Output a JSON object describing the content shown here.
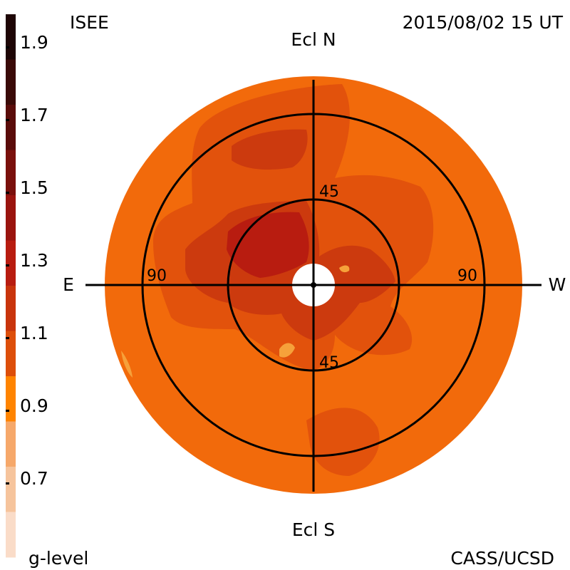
{
  "header": {
    "source_label": "ISEE",
    "timestamp": "2015/08/02 15 UT"
  },
  "footer": {
    "scale_title": "g-level",
    "credit": "CASS/UCSD"
  },
  "axes": {
    "north": "Ecl N",
    "south": "Ecl S",
    "east": "E",
    "west": "W",
    "ring_inner_top": "45",
    "ring_inner_bottom": "45",
    "ring_outer_left": "90",
    "ring_outer_right": "90"
  },
  "colorbar": {
    "tick_labels": [
      "1.9",
      "1.7",
      "1.5",
      "1.3",
      "1.1",
      "0.9",
      "0.7"
    ],
    "bands_top_to_bottom": [
      "#1e0606",
      "#3a0a08",
      "#5a0c0a",
      "#7a100c",
      "#9a140e",
      "#b81c10",
      "#c8340c",
      "#dd4e0a",
      "#ff8400",
      "#f6a86a",
      "#f6c49c",
      "#fadcc8"
    ]
  },
  "colors": {
    "background_disk": "#f26a0b",
    "level_1_0": "#e2520c",
    "level_1_1": "#cc3a0e",
    "level_1_2": "#b81c10",
    "level_0_8": "#f6a13a",
    "occulter": "#ffffff"
  }
}
